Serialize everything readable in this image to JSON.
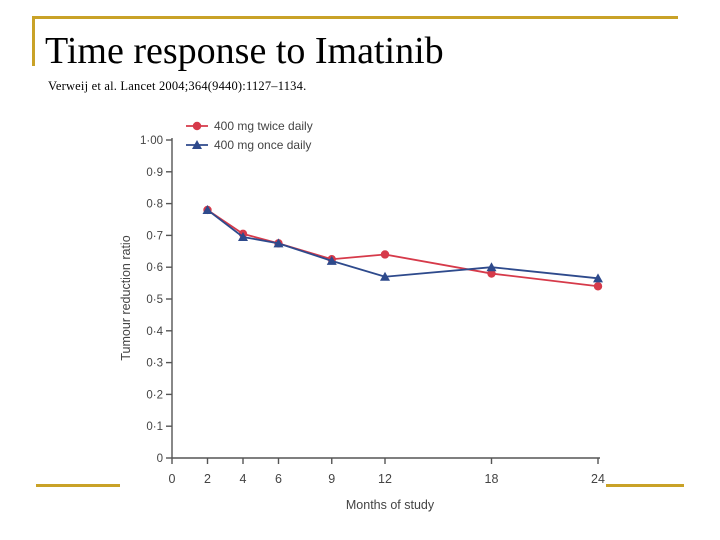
{
  "slide": {
    "title": "Time response to Imatinib",
    "citation": "Verweij et al. Lancet 2004;364(9440):1127–1134.",
    "frame_color": "#c9a227"
  },
  "chart_data": {
    "type": "line",
    "xlabel": "Months of study",
    "ylabel": "Tumour reduction ratio",
    "xlim": [
      0,
      24
    ],
    "ylim": [
      0,
      1
    ],
    "x_ticks": [
      0,
      2,
      4,
      6,
      9,
      12,
      18,
      24
    ],
    "x_tick_labels": [
      "0",
      "2",
      "4",
      "6",
      "9",
      "12",
      "18",
      "24"
    ],
    "y_ticks": [
      0,
      0.1,
      0.2,
      0.3,
      0.4,
      0.5,
      0.6,
      0.7,
      0.8,
      0.9,
      1.0
    ],
    "y_tick_labels": [
      "0",
      "0·1",
      "0·2",
      "0·3",
      "0·4",
      "0·5",
      "0·6",
      "0·7",
      "0·8",
      "0·9",
      "1·00"
    ],
    "grid": false,
    "legend_position": "top-left",
    "series": [
      {
        "name": "400 mg twice daily",
        "color": "#d63a4a",
        "marker": "circle",
        "x": [
          2,
          4,
          6,
          9,
          12,
          18,
          24
        ],
        "y": [
          0.78,
          0.705,
          0.675,
          0.625,
          0.64,
          0.58,
          0.54
        ]
      },
      {
        "name": "400 mg once daily",
        "color": "#2e4a8c",
        "marker": "triangle",
        "x": [
          2,
          4,
          6,
          9,
          12,
          18,
          24
        ],
        "y": [
          0.78,
          0.695,
          0.675,
          0.62,
          0.57,
          0.6,
          0.565
        ]
      }
    ]
  }
}
